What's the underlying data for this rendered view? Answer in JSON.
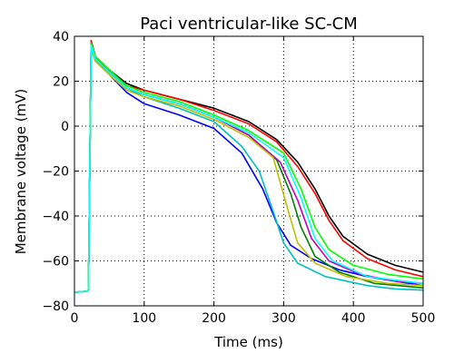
{
  "chart_data": {
    "type": "line",
    "title": "Paci ventricular-like SC-CM",
    "xlabel": "Time (ms)",
    "ylabel": "Membrane voltage (mV)",
    "xlim": [
      0,
      500
    ],
    "ylim": [
      -80,
      40
    ],
    "xticks": [
      0,
      100,
      200,
      300,
      400,
      500
    ],
    "yticks": [
      -80,
      -60,
      -40,
      -20,
      0,
      20,
      40
    ],
    "xtick_labels": [
      "0",
      "100",
      "200",
      "300",
      "400",
      "500"
    ],
    "ytick_labels": [
      "−80",
      "−60",
      "−40",
      "−20",
      "0",
      "20",
      "40"
    ],
    "grid": true,
    "legend": "none",
    "series": [
      {
        "color": "#0000ff",
        "values": [
          [
            0,
            -74
          ],
          [
            18,
            -73.5
          ],
          [
            20,
            -73
          ],
          [
            24,
            35
          ],
          [
            30,
            29
          ],
          [
            50,
            23
          ],
          [
            75,
            15
          ],
          [
            100,
            10
          ],
          [
            150,
            5
          ],
          [
            200,
            -1
          ],
          [
            240,
            -12
          ],
          [
            270,
            -28
          ],
          [
            290,
            -43
          ],
          [
            310,
            -53
          ],
          [
            340,
            -59
          ],
          [
            380,
            -64
          ],
          [
            420,
            -67
          ],
          [
            460,
            -69
          ],
          [
            500,
            -71
          ]
        ]
      },
      {
        "color": "#00bfbf",
        "values": [
          [
            0,
            -74
          ],
          [
            18,
            -73.5
          ],
          [
            20,
            -73
          ],
          [
            24,
            36
          ],
          [
            30,
            30
          ],
          [
            50,
            24
          ],
          [
            75,
            17
          ],
          [
            100,
            13
          ],
          [
            150,
            8
          ],
          [
            200,
            2
          ],
          [
            240,
            -9
          ],
          [
            265,
            -20
          ],
          [
            285,
            -38
          ],
          [
            300,
            -52
          ],
          [
            320,
            -61
          ],
          [
            360,
            -67
          ],
          [
            420,
            -71
          ],
          [
            460,
            -72.5
          ],
          [
            500,
            -73
          ]
        ]
      },
      {
        "color": "#000000",
        "values": [
          [
            0,
            -74
          ],
          [
            18,
            -73.5
          ],
          [
            20,
            -73
          ],
          [
            24,
            38
          ],
          [
            30,
            31
          ],
          [
            50,
            25
          ],
          [
            75,
            19
          ],
          [
            100,
            16
          ],
          [
            150,
            12
          ],
          [
            200,
            8
          ],
          [
            250,
            2
          ],
          [
            290,
            -6
          ],
          [
            320,
            -16
          ],
          [
            345,
            -28
          ],
          [
            365,
            -40
          ],
          [
            385,
            -49
          ],
          [
            420,
            -57
          ],
          [
            460,
            -62
          ],
          [
            500,
            -65
          ]
        ]
      },
      {
        "color": "#ff0000",
        "values": [
          [
            0,
            -74
          ],
          [
            18,
            -73.5
          ],
          [
            20,
            -73
          ],
          [
            24,
            38
          ],
          [
            30,
            31
          ],
          [
            50,
            25
          ],
          [
            75,
            18
          ],
          [
            100,
            16
          ],
          [
            150,
            12
          ],
          [
            200,
            7
          ],
          [
            250,
            1
          ],
          [
            290,
            -7
          ],
          [
            320,
            -18
          ],
          [
            345,
            -30
          ],
          [
            365,
            -42
          ],
          [
            385,
            -51
          ],
          [
            420,
            -59
          ],
          [
            460,
            -64
          ],
          [
            500,
            -67
          ]
        ]
      },
      {
        "color": "#008000",
        "values": [
          [
            0,
            -74
          ],
          [
            18,
            -73.5
          ],
          [
            20,
            -73
          ],
          [
            24,
            36
          ],
          [
            30,
            30
          ],
          [
            50,
            24
          ],
          [
            75,
            17
          ],
          [
            100,
            14
          ],
          [
            150,
            10
          ],
          [
            200,
            4
          ],
          [
            250,
            -4
          ],
          [
            290,
            -15
          ],
          [
            310,
            -30
          ],
          [
            325,
            -45
          ],
          [
            345,
            -58
          ],
          [
            380,
            -65
          ],
          [
            430,
            -70
          ],
          [
            500,
            -72
          ]
        ]
      },
      {
        "color": "#bf00bf",
        "values": [
          [
            0,
            -74
          ],
          [
            18,
            -73.5
          ],
          [
            20,
            -73
          ],
          [
            24,
            36
          ],
          [
            30,
            30
          ],
          [
            50,
            24
          ],
          [
            75,
            17
          ],
          [
            100,
            14
          ],
          [
            150,
            10
          ],
          [
            200,
            4
          ],
          [
            250,
            -4
          ],
          [
            295,
            -16
          ],
          [
            320,
            -33
          ],
          [
            340,
            -50
          ],
          [
            365,
            -60
          ],
          [
            410,
            -66
          ],
          [
            460,
            -69
          ],
          [
            500,
            -70
          ]
        ]
      },
      {
        "color": "#bfbf00",
        "values": [
          [
            0,
            -74
          ],
          [
            18,
            -73.5
          ],
          [
            20,
            -73
          ],
          [
            24,
            35
          ],
          [
            30,
            29
          ],
          [
            50,
            23
          ],
          [
            75,
            16
          ],
          [
            100,
            13
          ],
          [
            150,
            9
          ],
          [
            200,
            3
          ],
          [
            250,
            -5
          ],
          [
            285,
            -14
          ],
          [
            305,
            -36
          ],
          [
            320,
            -52
          ],
          [
            345,
            -61
          ],
          [
            390,
            -67
          ],
          [
            450,
            -70
          ],
          [
            500,
            -71
          ]
        ]
      },
      {
        "color": "#00ff00",
        "values": [
          [
            0,
            -74
          ],
          [
            18,
            -73.5
          ],
          [
            20,
            -73
          ],
          [
            24,
            37
          ],
          [
            30,
            31
          ],
          [
            50,
            25
          ],
          [
            75,
            18
          ],
          [
            100,
            15
          ],
          [
            150,
            11
          ],
          [
            200,
            5
          ],
          [
            250,
            -2
          ],
          [
            300,
            -12
          ],
          [
            325,
            -28
          ],
          [
            345,
            -45
          ],
          [
            365,
            -55
          ],
          [
            400,
            -62
          ],
          [
            450,
            -66
          ],
          [
            500,
            -68
          ]
        ]
      },
      {
        "color": "#00ffff",
        "values": [
          [
            0,
            -74
          ],
          [
            18,
            -73.5
          ],
          [
            20,
            -73
          ],
          [
            24,
            36
          ],
          [
            30,
            30
          ],
          [
            50,
            24
          ],
          [
            75,
            17
          ],
          [
            100,
            14
          ],
          [
            150,
            10
          ],
          [
            200,
            4
          ],
          [
            250,
            -3
          ],
          [
            300,
            -14
          ],
          [
            325,
            -32
          ],
          [
            345,
            -50
          ],
          [
            370,
            -60
          ],
          [
            420,
            -67
          ],
          [
            500,
            -70
          ]
        ]
      }
    ]
  }
}
